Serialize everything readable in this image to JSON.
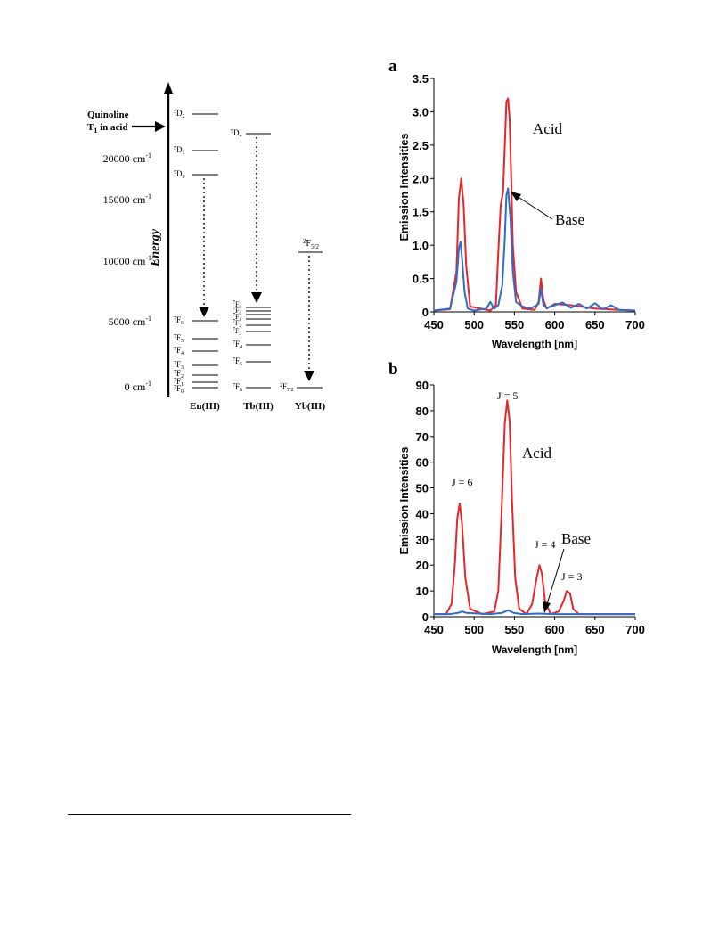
{
  "energy_diagram": {
    "axis_title": "Energy",
    "quinoline_label_line1": "Quinoline",
    "quinoline_label_line2_prefix": "T",
    "quinoline_label_line2_sub": "1",
    "quinoline_label_line2_suffix": " in acid",
    "ticks": [
      {
        "label": "20000 cm-1",
        "text": "20000 cm",
        "sup": "-1"
      },
      {
        "label": "15000 cm-1",
        "text": "15000 cm",
        "sup": "-1"
      },
      {
        "label": "10000 cm-1",
        "text": "10000 cm",
        "sup": "-1"
      },
      {
        "label": "5000 cm-1",
        "text": "5000 cm",
        "sup": "-1"
      },
      {
        "label": "0 cm-1",
        "text": "0 cm",
        "sup": "-1"
      }
    ],
    "ions": [
      "Eu(III)",
      "Tb(III)",
      "Yb(III)"
    ],
    "eu_levels": [
      {
        "sup": "5",
        "main": "D",
        "sub": "2"
      },
      {
        "sup": "5",
        "main": "D",
        "sub": "1"
      },
      {
        "sup": "5",
        "main": "D",
        "sub": "0"
      },
      {
        "sup": "7",
        "main": "F",
        "sub": "6"
      },
      {
        "sup": "7",
        "main": "F",
        "sub": "5"
      },
      {
        "sup": "7",
        "main": "F",
        "sub": "4"
      },
      {
        "sup": "7",
        "main": "F",
        "sub": "3"
      },
      {
        "sup": "7",
        "main": "F",
        "sub": "2"
      },
      {
        "sup": "7",
        "main": "F",
        "sub": "1"
      },
      {
        "sup": "7",
        "main": "F",
        "sub": "0"
      }
    ],
    "tb_levels": [
      {
        "sup": "5",
        "main": "D",
        "sub": "4"
      },
      {
        "sup": "7",
        "main": "F",
        "sub": "0"
      },
      {
        "sup": "7",
        "main": "F",
        "sub": "0"
      },
      {
        "sup": "7",
        "main": "F",
        "sub": "1"
      },
      {
        "sup": "7",
        "main": "F",
        "sub": "2"
      },
      {
        "sup": "7",
        "main": "F",
        "sub": "3"
      },
      {
        "sup": "7",
        "main": "F",
        "sub": "4"
      },
      {
        "sup": "7",
        "main": "F",
        "sub": "5"
      },
      {
        "sup": "7",
        "main": "F",
        "sub": "6"
      }
    ],
    "yb_levels": [
      {
        "sup": "2",
        "main": "F",
        "sub": "5/2"
      },
      {
        "sup": "2",
        "main": "F",
        "sub": "7/2"
      }
    ]
  },
  "chart_data": [
    {
      "type": "line",
      "panel_label": "a",
      "xlabel": "Wavelength [nm]",
      "ylabel": "Emission Intensities",
      "xlim": [
        450,
        700
      ],
      "ylim": [
        0,
        3.5
      ],
      "x_ticks": [
        "450",
        "500",
        "550",
        "600",
        "650",
        "700"
      ],
      "y_ticks": [
        "0",
        "0.5",
        "1.0",
        "1.5",
        "2.0",
        "2.5",
        "3.0",
        "3.5"
      ],
      "annotations": [
        "Acid",
        "Base"
      ],
      "series": [
        {
          "name": "Acid",
          "color": "#e8252a",
          "x": [
            450,
            470,
            478,
            481,
            484,
            487,
            490,
            495,
            520,
            527,
            530,
            533,
            536,
            538,
            540,
            542,
            544,
            546,
            548,
            552,
            560,
            575,
            580,
            583,
            586,
            590,
            600,
            620,
            650,
            680,
            700
          ],
          "y": [
            0.02,
            0.04,
            0.6,
            1.7,
            2.0,
            1.6,
            0.7,
            0.08,
            0.02,
            0.1,
            0.9,
            1.6,
            1.8,
            2.5,
            3.15,
            3.2,
            2.9,
            2.0,
            1.0,
            0.3,
            0.05,
            0.03,
            0.15,
            0.5,
            0.18,
            0.05,
            0.12,
            0.1,
            0.05,
            0.03,
            0.02
          ]
        },
        {
          "name": "Base",
          "color": "#2f6dc8",
          "x": [
            450,
            470,
            478,
            481,
            483,
            485,
            488,
            492,
            500,
            515,
            520,
            525,
            530,
            535,
            538,
            540,
            542,
            545,
            548,
            552,
            560,
            570,
            580,
            583,
            586,
            590,
            600,
            610,
            620,
            630,
            640,
            650,
            660,
            670,
            680,
            700
          ],
          "y": [
            0.02,
            0.05,
            0.45,
            0.95,
            1.05,
            0.8,
            0.3,
            0.05,
            0.02,
            0.05,
            0.15,
            0.05,
            0.1,
            0.4,
            1.1,
            1.75,
            1.85,
            1.4,
            0.6,
            0.15,
            0.08,
            0.05,
            0.12,
            0.35,
            0.1,
            0.06,
            0.1,
            0.14,
            0.06,
            0.12,
            0.05,
            0.13,
            0.04,
            0.1,
            0.03,
            0.02
          ]
        }
      ]
    },
    {
      "type": "line",
      "panel_label": "b",
      "xlabel": "Wavelength [nm]",
      "ylabel": "Emission Intensities",
      "xlim": [
        450,
        700
      ],
      "ylim": [
        0,
        90
      ],
      "x_ticks": [
        "450",
        "500",
        "550",
        "600",
        "650",
        "700"
      ],
      "y_ticks": [
        "0",
        "10",
        "20",
        "30",
        "40",
        "50",
        "60",
        "70",
        "80",
        "90"
      ],
      "annotations": [
        "Acid",
        "Base",
        "J = 6",
        "J = 5",
        "J = 4",
        "J = 3"
      ],
      "series": [
        {
          "name": "Acid",
          "color": "#e8252a",
          "x": [
            450,
            465,
            472,
            476,
            479,
            482,
            485,
            489,
            495,
            510,
            525,
            530,
            534,
            538,
            541,
            544,
            547,
            551,
            556,
            565,
            572,
            577,
            581,
            584,
            588,
            595,
            605,
            611,
            615,
            619,
            623,
            630,
            650,
            680,
            700
          ],
          "y": [
            1,
            1,
            5,
            20,
            38,
            44,
            36,
            15,
            3,
            1,
            2,
            10,
            40,
            75,
            84,
            76,
            45,
            15,
            3,
            1,
            5,
            14,
            20,
            17,
            6,
            1,
            2,
            6,
            10,
            9,
            3,
            1,
            1,
            1,
            1
          ]
        },
        {
          "name": "Base",
          "color": "#2f6dc8",
          "x": [
            450,
            470,
            480,
            485,
            490,
            520,
            535,
            542,
            549,
            560,
            580,
            600,
            620,
            650,
            700
          ],
          "y": [
            1,
            1,
            1.5,
            2,
            1.5,
            1,
            1.5,
            2.5,
            1.5,
            1,
            1.2,
            1,
            1,
            1,
            1
          ]
        }
      ]
    }
  ]
}
